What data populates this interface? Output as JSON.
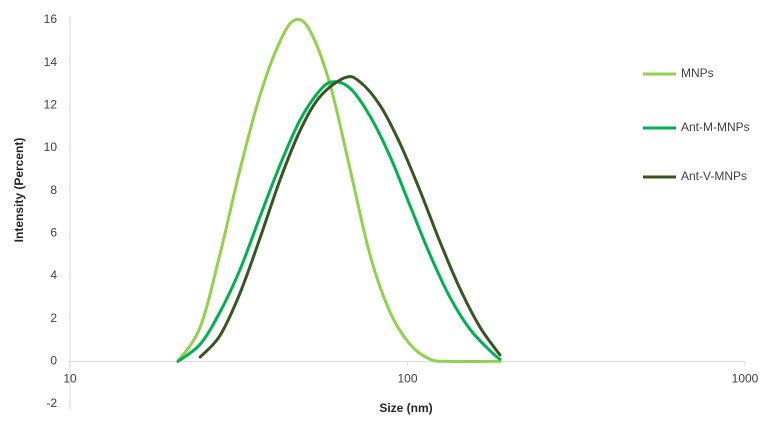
{
  "chart_data": {
    "type": "line",
    "x_label": "Size (nm)",
    "y_label": "Intensity (Percent)",
    "xlim": [
      10,
      1000
    ],
    "xticks": [
      10,
      100,
      1000
    ],
    "xscale": "log",
    "ylim": [
      -2,
      16
    ],
    "yticks": [
      -2,
      0,
      2,
      4,
      6,
      8,
      10,
      12,
      14,
      16
    ],
    "grid": false,
    "legend": "right",
    "series": [
      {
        "name": "MNPs",
        "color": "#92d050",
        "x": [
          20.9,
          24.3,
          27.8,
          31.9,
          36.6,
          41.9,
          46.4,
          51.4,
          58.9,
          67.6,
          77.4,
          88.8,
          101.7,
          116.6,
          133.6,
          187.9
        ],
        "values": [
          0,
          1.6,
          5,
          9,
          12.5,
          15,
          16,
          15.5,
          13,
          9,
          5,
          2.3,
          0.8,
          0.1,
          0,
          0
        ]
      },
      {
        "name": "Ant-M-MNPs",
        "color": "#00b050",
        "x": [
          20.9,
          24.3,
          27.8,
          31.9,
          36.6,
          41.9,
          48.0,
          55.0,
          60.1,
          67.6,
          77.4,
          88.8,
          101.7,
          116.6,
          133.6,
          153.2,
          175.5,
          187.9
        ],
        "values": [
          0,
          0.8,
          2.3,
          4.3,
          6.8,
          9.2,
          11.3,
          12.7,
          13.1,
          12.8,
          11.5,
          9.6,
          7.3,
          5.0,
          3.0,
          1.5,
          0.5,
          0.1
        ]
      },
      {
        "name": "Ant-V-MNPs",
        "color": "#375623",
        "x": [
          24.3,
          27.8,
          31.9,
          36.6,
          41.9,
          48.0,
          55.0,
          65.3,
          72.3,
          82.9,
          95.1,
          108.9,
          124.8,
          143.1,
          164.0,
          187.9
        ],
        "values": [
          0.2,
          1.2,
          3.2,
          5.8,
          8.5,
          10.8,
          12.4,
          13.3,
          13.1,
          12.0,
          10.2,
          8.0,
          5.6,
          3.4,
          1.6,
          0.3
        ]
      }
    ]
  }
}
